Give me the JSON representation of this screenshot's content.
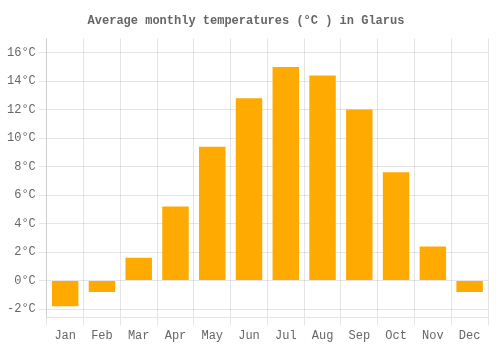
{
  "chart_data": {
    "type": "bar",
    "title": "Average monthly temperatures (°C ) in Glarus",
    "categories": [
      "Jan",
      "Feb",
      "Mar",
      "Apr",
      "May",
      "Jun",
      "Jul",
      "Aug",
      "Sep",
      "Oct",
      "Nov",
      "Dec"
    ],
    "values": [
      -1.8,
      -0.8,
      1.6,
      5.2,
      9.4,
      12.8,
      15.0,
      14.4,
      12.0,
      7.6,
      2.4,
      -0.8
    ],
    "color": "#FFAA00",
    "ylim": [
      -2.6,
      17.0
    ],
    "yticks": [
      {
        "value": -2,
        "label": "-2°C"
      },
      {
        "value": 0,
        "label": "0°C"
      },
      {
        "value": 2,
        "label": "2°C"
      },
      {
        "value": 4,
        "label": "4°C"
      },
      {
        "value": 6,
        "label": "6°C"
      },
      {
        "value": 8,
        "label": "8°C"
      },
      {
        "value": 10,
        "label": "10°C"
      },
      {
        "value": 12,
        "label": "12°C"
      },
      {
        "value": 14,
        "label": "14°C"
      },
      {
        "value": 16,
        "label": "16°C"
      }
    ],
    "grid": true
  }
}
